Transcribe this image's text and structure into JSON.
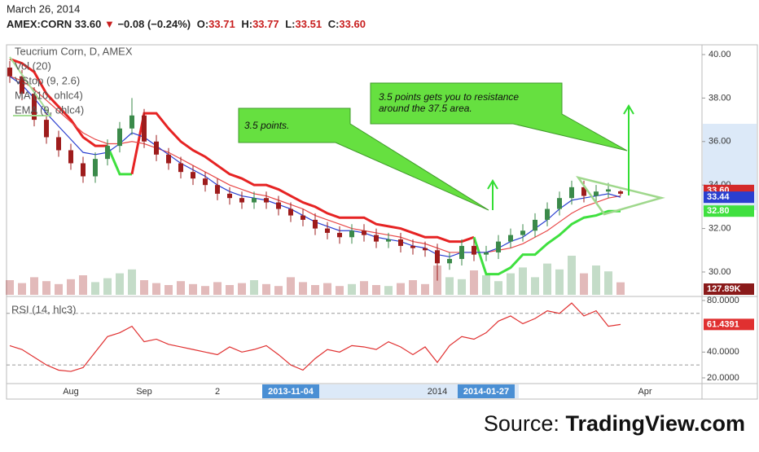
{
  "quote": {
    "date": "March 26, 2014",
    "symbol": "AMEX:CORN",
    "last": "33.60",
    "arrow": "▼",
    "change": "−0.08 (−0.24%)",
    "ohlc": [
      {
        "label": "O:",
        "value": "33.71"
      },
      {
        "label": "H:",
        "value": "33.77"
      },
      {
        "label": "L:",
        "value": "33.51"
      },
      {
        "label": "C:",
        "value": "33.60"
      }
    ]
  },
  "source": {
    "label": "Source:",
    "site": "TradingView.com"
  },
  "chart_data": [
    {
      "type": "candlestick",
      "title": "Teucrium Corn, D, AMEX",
      "categories": [
        null,
        null,
        null,
        null,
        null,
        "Aug",
        null,
        null,
        null,
        null,
        null,
        "Sep",
        null,
        null,
        null,
        null,
        null,
        "2",
        null,
        null,
        null,
        null,
        null,
        "2013-11-04",
        null,
        null,
        null,
        null,
        null,
        null,
        null,
        null,
        null,
        null,
        null,
        "2014",
        null,
        null,
        null,
        "2014-01-27",
        null,
        null,
        null,
        null,
        null,
        null,
        null,
        null,
        null,
        null,
        null,
        null,
        "Apr"
      ],
      "open": [
        39.4,
        39.0,
        38.2,
        37.0,
        36.2,
        35.6,
        35.0,
        34.4,
        35.2,
        35.8,
        36.6,
        37.2,
        36.0,
        35.4,
        35.0,
        34.6,
        34.3,
        34.0,
        33.6,
        33.4,
        33.2,
        33.4,
        33.2,
        32.9,
        32.6,
        32.4,
        32.0,
        31.8,
        31.6,
        31.9,
        31.7,
        31.4,
        31.5,
        31.2,
        31.1,
        31.0,
        30.4,
        30.6,
        31.2,
        30.8,
        30.9,
        31.4,
        31.7,
        31.9,
        32.4,
        32.9,
        33.4,
        33.9,
        33.5,
        33.7,
        33.71,
        null,
        null
      ],
      "high": [
        39.7,
        39.3,
        38.5,
        37.3,
        36.5,
        35.9,
        35.3,
        35.5,
        36.1,
        36.9,
        38.0,
        37.5,
        36.3,
        35.7,
        35.3,
        34.9,
        34.6,
        34.3,
        33.9,
        33.7,
        33.7,
        33.7,
        33.5,
        33.2,
        32.9,
        32.7,
        32.3,
        32.1,
        32.2,
        32.2,
        32.0,
        31.8,
        31.8,
        31.5,
        31.4,
        31.3,
        30.9,
        31.5,
        31.5,
        31.2,
        31.7,
        32.0,
        32.2,
        32.7,
        33.2,
        33.7,
        34.2,
        34.2,
        34.0,
        34.1,
        33.77,
        null,
        null
      ],
      "low": [
        38.7,
        37.9,
        36.7,
        35.9,
        35.3,
        34.7,
        34.1,
        34.1,
        34.9,
        35.5,
        36.3,
        35.7,
        35.1,
        34.7,
        34.3,
        34.0,
        33.7,
        33.3,
        33.1,
        32.9,
        32.9,
        32.9,
        32.6,
        32.3,
        32.1,
        31.7,
        31.5,
        31.3,
        31.3,
        31.4,
        31.1,
        31.1,
        30.9,
        30.8,
        30.7,
        29.6,
        30.1,
        30.3,
        30.5,
        30.5,
        30.6,
        31.1,
        31.4,
        31.6,
        32.1,
        32.6,
        33.1,
        33.2,
        33.2,
        33.4,
        33.51,
        null,
        null
      ],
      "close": [
        39.0,
        38.2,
        37.0,
        36.2,
        35.6,
        35.0,
        34.4,
        35.2,
        35.8,
        36.6,
        37.2,
        36.0,
        35.4,
        35.0,
        34.6,
        34.3,
        34.0,
        33.6,
        33.4,
        33.2,
        33.4,
        33.2,
        32.9,
        32.6,
        32.4,
        32.0,
        31.8,
        31.6,
        31.9,
        31.7,
        31.4,
        31.5,
        31.2,
        31.1,
        31.0,
        30.4,
        30.6,
        31.2,
        30.8,
        30.9,
        31.4,
        31.7,
        31.9,
        32.4,
        32.9,
        33.4,
        33.9,
        33.5,
        33.7,
        33.8,
        33.6,
        null,
        null
      ],
      "value_labels": [
        null,
        null,
        null,
        null,
        null,
        null,
        null,
        null,
        null,
        null,
        null,
        null,
        null,
        null,
        null,
        null,
        null,
        null,
        null,
        null,
        null,
        null,
        null,
        null,
        null,
        null,
        null,
        null,
        null,
        null,
        null,
        null,
        null,
        null,
        null,
        null,
        null,
        null,
        null,
        null,
        null,
        null,
        null,
        null,
        null,
        null,
        null,
        null,
        null,
        null,
        "33.60",
        null,
        null
      ],
      "up_color": "#3b8a4a",
      "down_color": "#9e1c1c",
      "label_color": "#d42a2a",
      "series": [
        {
          "name": "VStop (9, 2.6)",
          "color": "#e62323",
          "color_below": "#3fe03f",
          "values": [
            39.8,
            39.6,
            39.2,
            38.2,
            37.6,
            37.0,
            36.2,
            35.8,
            35.8,
            34.5,
            34.5,
            37.3,
            37.3,
            36.6,
            36.0,
            35.6,
            35.3,
            34.9,
            34.5,
            34.3,
            34.0,
            34.0,
            33.8,
            33.5,
            33.2,
            33.0,
            32.7,
            32.5,
            32.5,
            32.5,
            32.2,
            32.1,
            32.0,
            31.8,
            31.6,
            31.6,
            31.4,
            31.4,
            31.6,
            29.9,
            29.9,
            30.2,
            30.8,
            30.8,
            31.3,
            31.7,
            32.2,
            32.5,
            32.6,
            32.8,
            32.8,
            null,
            null
          ],
          "value_labels": [
            null,
            null,
            null,
            null,
            null,
            null,
            null,
            null,
            null,
            null,
            null,
            null,
            null,
            null,
            null,
            null,
            null,
            null,
            null,
            null,
            null,
            null,
            null,
            null,
            null,
            null,
            null,
            null,
            null,
            null,
            null,
            null,
            null,
            null,
            null,
            null,
            null,
            null,
            null,
            null,
            null,
            null,
            null,
            null,
            null,
            null,
            null,
            null,
            null,
            null,
            "32.80",
            null,
            null
          ]
        },
        {
          "name": "MA (10, ohlc4)",
          "color": "#e84848",
          "values": [
            39.0,
            38.8,
            38.4,
            37.9,
            37.4,
            36.9,
            36.4,
            36.1,
            35.9,
            35.9,
            36.0,
            35.9,
            35.7,
            35.5,
            35.2,
            34.9,
            34.6,
            34.3,
            34.0,
            33.8,
            33.6,
            33.5,
            33.3,
            33.1,
            32.9,
            32.6,
            32.4,
            32.2,
            32.0,
            31.9,
            31.8,
            31.7,
            31.6,
            31.4,
            31.3,
            31.1,
            30.9,
            30.9,
            30.9,
            30.9,
            31.0,
            31.1,
            31.3,
            31.6,
            31.9,
            32.3,
            32.7,
            33.0,
            33.2,
            33.4,
            33.5,
            null,
            null
          ]
        },
        {
          "name": "EMA (9, ohlc4)",
          "color": "#2a3fd0",
          "values": [
            39.0,
            38.6,
            38.0,
            37.3,
            36.7,
            36.1,
            35.5,
            35.4,
            35.5,
            35.9,
            36.4,
            36.2,
            35.8,
            35.4,
            35.0,
            34.7,
            34.4,
            34.0,
            33.7,
            33.5,
            33.4,
            33.3,
            33.1,
            32.9,
            32.6,
            32.3,
            32.1,
            31.9,
            31.9,
            31.8,
            31.6,
            31.5,
            31.4,
            31.2,
            31.1,
            30.8,
            30.7,
            30.9,
            30.9,
            30.9,
            31.1,
            31.4,
            31.6,
            32.0,
            32.4,
            32.9,
            33.3,
            33.4,
            33.5,
            33.6,
            33.44,
            null,
            null
          ],
          "value_labels": [
            null,
            null,
            null,
            null,
            null,
            null,
            null,
            null,
            null,
            null,
            null,
            null,
            null,
            null,
            null,
            null,
            null,
            null,
            null,
            null,
            null,
            null,
            null,
            null,
            null,
            null,
            null,
            null,
            null,
            null,
            null,
            null,
            null,
            null,
            null,
            null,
            null,
            null,
            null,
            null,
            null,
            null,
            null,
            null,
            null,
            null,
            null,
            null,
            null,
            null,
            "33.44",
            null,
            null
          ]
        }
      ],
      "volume": {
        "name": "Vol (20)",
        "label_color": "#8a1a1a",
        "values": [
          150000,
          120000,
          180000,
          140000,
          110000,
          160000,
          200000,
          130000,
          170000,
          220000,
          260000,
          150000,
          120000,
          100000,
          140000,
          110000,
          90000,
          130000,
          100000,
          120000,
          150000,
          110000,
          90000,
          180000,
          130000,
          100000,
          120000,
          90000,
          110000,
          140000,
          100000,
          90000,
          120000,
          150000,
          110000,
          300000,
          180000,
          160000,
          250000,
          200000,
          140000,
          220000,
          280000,
          180000,
          320000,
          260000,
          400000,
          220000,
          300000,
          240000,
          127890,
          null,
          null
        ],
        "value_labels": [
          null,
          null,
          null,
          null,
          null,
          null,
          null,
          null,
          null,
          null,
          null,
          null,
          null,
          null,
          null,
          null,
          null,
          null,
          null,
          null,
          null,
          null,
          null,
          null,
          null,
          null,
          null,
          null,
          null,
          null,
          null,
          null,
          null,
          null,
          null,
          null,
          null,
          null,
          null,
          null,
          null,
          null,
          null,
          null,
          null,
          null,
          null,
          null,
          null,
          null,
          "127.89K",
          null,
          null
        ]
      },
      "ylim": [
        28.95,
        40.45
      ],
      "yticks": [
        {
          "value": 30,
          "label": "30.00"
        },
        {
          "value": 32,
          "label": "32.00"
        },
        {
          "value": 34,
          "label": "34.00"
        },
        {
          "value": 36,
          "label": "36.00"
        },
        {
          "value": 38,
          "label": "38.00"
        },
        {
          "value": 40,
          "label": "40.00"
        }
      ],
      "annotations": [
        {
          "lines": [
            "3.5 points."
          ]
        },
        {
          "lines": [
            "3.5 points gets you to resistance",
            "around the 37.5 area."
          ]
        }
      ]
    },
    {
      "type": "line",
      "title": "RSI (14, hlc3)",
      "color": "#e03030",
      "values": [
        45,
        42,
        36,
        30,
        26,
        25,
        28,
        40,
        52,
        55,
        60,
        48,
        50,
        46,
        44,
        42,
        40,
        38,
        44,
        40,
        42,
        45,
        38,
        30,
        26,
        35,
        42,
        40,
        45,
        44,
        42,
        48,
        44,
        38,
        44,
        32,
        45,
        52,
        50,
        55,
        64,
        68,
        62,
        66,
        72,
        70,
        78,
        68,
        72,
        60,
        61.4391,
        null,
        null
      ],
      "ylim": [
        16.2,
        82.5
      ],
      "yticks": [
        {
          "value": 20,
          "label": "20.0000"
        },
        {
          "value": 40,
          "label": "40.0000"
        },
        {
          "value": 80,
          "label": "80.0000"
        }
      ],
      "bands": [
        30,
        70
      ]
    }
  ]
}
